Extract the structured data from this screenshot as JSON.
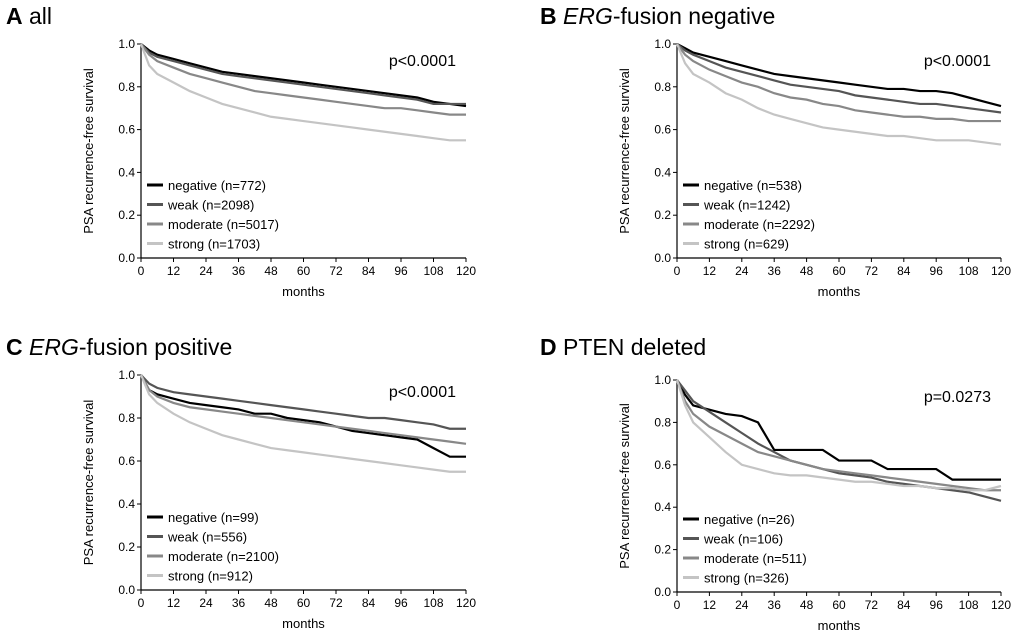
{
  "chart_data": [
    {
      "type": "line",
      "panel": "A",
      "title": "all",
      "annotation": "p<0.0001",
      "x_label": "months",
      "y_label": "PSA recurrence-free survival",
      "x": [
        0,
        3,
        6,
        12,
        18,
        24,
        30,
        36,
        42,
        48,
        54,
        60,
        66,
        72,
        78,
        84,
        90,
        96,
        102,
        108,
        114,
        120
      ],
      "series": [
        {
          "name": "negative (n=772)",
          "color": "#000000",
          "values": [
            1,
            0.97,
            0.95,
            0.93,
            0.91,
            0.89,
            0.87,
            0.86,
            0.85,
            0.84,
            0.83,
            0.82,
            0.81,
            0.8,
            0.79,
            0.78,
            0.77,
            0.76,
            0.75,
            0.73,
            0.72,
            0.71
          ]
        },
        {
          "name": "weak (n=2098)",
          "color": "#555555",
          "values": [
            1,
            0.96,
            0.94,
            0.92,
            0.9,
            0.88,
            0.86,
            0.85,
            0.84,
            0.83,
            0.82,
            0.81,
            0.8,
            0.79,
            0.78,
            0.77,
            0.76,
            0.75,
            0.74,
            0.72,
            0.72,
            0.72
          ]
        },
        {
          "name": "moderate (n=5017)",
          "color": "#888888",
          "values": [
            1,
            0.95,
            0.92,
            0.89,
            0.86,
            0.84,
            0.82,
            0.8,
            0.78,
            0.77,
            0.76,
            0.75,
            0.74,
            0.73,
            0.72,
            0.71,
            0.7,
            0.7,
            0.69,
            0.68,
            0.67,
            0.67
          ]
        },
        {
          "name": "strong (n=1703)",
          "color": "#c4c4c4",
          "values": [
            1,
            0.9,
            0.86,
            0.82,
            0.78,
            0.75,
            0.72,
            0.7,
            0.68,
            0.66,
            0.65,
            0.64,
            0.63,
            0.62,
            0.61,
            0.6,
            0.59,
            0.58,
            0.57,
            0.56,
            0.55,
            0.55
          ]
        }
      ],
      "xlim": [
        0,
        120
      ],
      "xticks": [
        0,
        12,
        24,
        36,
        48,
        60,
        72,
        84,
        96,
        108,
        120
      ],
      "ylim": [
        0,
        1
      ],
      "yticks": [
        {
          "value": 0,
          "label": "0.0"
        },
        0.2,
        0.4,
        0.6,
        0.8,
        {
          "value": 1,
          "label": "1.0"
        }
      ]
    },
    {
      "type": "line",
      "panel": "B",
      "title_italic": "ERG",
      "title": "-fusion negative",
      "annotation": "p<0.0001",
      "x_label": "months",
      "y_label": "PSA recurrence-free survival",
      "x": [
        0,
        3,
        6,
        12,
        18,
        24,
        30,
        36,
        42,
        48,
        54,
        60,
        66,
        72,
        78,
        84,
        90,
        96,
        102,
        108,
        114,
        120
      ],
      "series": [
        {
          "name": "negative (n=538)",
          "color": "#000000",
          "values": [
            1,
            0.98,
            0.96,
            0.94,
            0.92,
            0.9,
            0.88,
            0.86,
            0.85,
            0.84,
            0.83,
            0.82,
            0.81,
            0.8,
            0.79,
            0.79,
            0.78,
            0.78,
            0.77,
            0.75,
            0.73,
            0.71
          ]
        },
        {
          "name": "weak (n=1242)",
          "color": "#555555",
          "values": [
            1,
            0.97,
            0.95,
            0.92,
            0.89,
            0.87,
            0.85,
            0.83,
            0.81,
            0.8,
            0.79,
            0.78,
            0.76,
            0.75,
            0.74,
            0.73,
            0.72,
            0.72,
            0.71,
            0.7,
            0.69,
            0.68
          ]
        },
        {
          "name": "moderate (n=2292)",
          "color": "#888888",
          "values": [
            1,
            0.95,
            0.92,
            0.88,
            0.85,
            0.82,
            0.8,
            0.77,
            0.75,
            0.74,
            0.72,
            0.71,
            0.69,
            0.68,
            0.67,
            0.66,
            0.66,
            0.65,
            0.65,
            0.64,
            0.64,
            0.64
          ]
        },
        {
          "name": "strong (n=629)",
          "color": "#c4c4c4",
          "values": [
            1,
            0.91,
            0.86,
            0.82,
            0.77,
            0.74,
            0.7,
            0.67,
            0.65,
            0.63,
            0.61,
            0.6,
            0.59,
            0.58,
            0.57,
            0.57,
            0.56,
            0.55,
            0.55,
            0.55,
            0.54,
            0.53
          ]
        }
      ],
      "xlim": [
        0,
        120
      ],
      "xticks": [
        0,
        12,
        24,
        36,
        48,
        60,
        72,
        84,
        96,
        108,
        120
      ],
      "ylim": [
        0,
        1
      ],
      "yticks": [
        {
          "value": 0,
          "label": "0.0"
        },
        0.2,
        0.4,
        0.6,
        0.8,
        {
          "value": 1,
          "label": "1.0"
        }
      ]
    },
    {
      "type": "line",
      "panel": "C",
      "title_italic": "ERG",
      "title": "-fusion positive",
      "annotation": "p<0.0001",
      "x_label": "months",
      "y_label": "PSA recurrence-free survival",
      "x": [
        0,
        3,
        6,
        12,
        18,
        24,
        30,
        36,
        42,
        48,
        54,
        60,
        66,
        72,
        78,
        84,
        90,
        96,
        102,
        108,
        114,
        120
      ],
      "series": [
        {
          "name": "negative (n=99)",
          "color": "#000000",
          "values": [
            1,
            0.93,
            0.91,
            0.89,
            0.87,
            0.86,
            0.85,
            0.84,
            0.82,
            0.82,
            0.8,
            0.79,
            0.78,
            0.76,
            0.74,
            0.73,
            0.72,
            0.71,
            0.7,
            0.66,
            0.62,
            0.62
          ]
        },
        {
          "name": "weak (n=556)",
          "color": "#555555",
          "values": [
            1,
            0.96,
            0.94,
            0.92,
            0.91,
            0.9,
            0.89,
            0.88,
            0.87,
            0.86,
            0.85,
            0.84,
            0.83,
            0.82,
            0.81,
            0.8,
            0.8,
            0.79,
            0.78,
            0.77,
            0.75,
            0.75
          ]
        },
        {
          "name": "moderate (n=2100)",
          "color": "#888888",
          "values": [
            1,
            0.93,
            0.9,
            0.87,
            0.85,
            0.84,
            0.83,
            0.82,
            0.81,
            0.8,
            0.79,
            0.78,
            0.77,
            0.76,
            0.75,
            0.74,
            0.73,
            0.72,
            0.71,
            0.7,
            0.69,
            0.68
          ]
        },
        {
          "name": "strong (n=912)",
          "color": "#c4c4c4",
          "values": [
            1,
            0.91,
            0.87,
            0.82,
            0.78,
            0.75,
            0.72,
            0.7,
            0.68,
            0.66,
            0.65,
            0.64,
            0.63,
            0.62,
            0.61,
            0.6,
            0.59,
            0.58,
            0.57,
            0.56,
            0.55,
            0.55
          ]
        }
      ],
      "xlim": [
        0,
        120
      ],
      "xticks": [
        0,
        12,
        24,
        36,
        48,
        60,
        72,
        84,
        96,
        108,
        120
      ],
      "ylim": [
        0,
        1
      ],
      "yticks": [
        {
          "value": 0,
          "label": "0.0"
        },
        0.2,
        0.4,
        0.6,
        0.8,
        {
          "value": 1,
          "label": "1.0"
        }
      ]
    },
    {
      "type": "line",
      "panel": "D",
      "title": "PTEN deleted",
      "annotation": "p=0.0273",
      "x_label": "months",
      "y_label": "PSA recurrence-free survival",
      "x": [
        0,
        3,
        6,
        12,
        18,
        24,
        30,
        36,
        42,
        48,
        54,
        60,
        66,
        72,
        78,
        84,
        90,
        96,
        102,
        108,
        114,
        120
      ],
      "series": [
        {
          "name": "negative (n=26)",
          "color": "#000000",
          "values": [
            1,
            0.93,
            0.88,
            0.86,
            0.84,
            0.83,
            0.8,
            0.67,
            0.67,
            0.67,
            0.67,
            0.62,
            0.62,
            0.62,
            0.58,
            0.58,
            0.58,
            0.58,
            0.53,
            0.53,
            0.53,
            0.53
          ]
        },
        {
          "name": "weak (n=106)",
          "color": "#555555",
          "values": [
            1,
            0.95,
            0.9,
            0.85,
            0.8,
            0.75,
            0.7,
            0.66,
            0.62,
            0.6,
            0.58,
            0.56,
            0.55,
            0.54,
            0.52,
            0.51,
            0.5,
            0.49,
            0.48,
            0.47,
            0.45,
            0.43
          ]
        },
        {
          "name": "moderate (n=511)",
          "color": "#888888",
          "values": [
            1,
            0.9,
            0.84,
            0.78,
            0.74,
            0.7,
            0.66,
            0.64,
            0.62,
            0.6,
            0.58,
            0.57,
            0.56,
            0.55,
            0.54,
            0.53,
            0.52,
            0.51,
            0.5,
            0.49,
            0.48,
            0.48
          ]
        },
        {
          "name": "strong (n=326)",
          "color": "#c4c4c4",
          "values": [
            1,
            0.88,
            0.8,
            0.73,
            0.66,
            0.6,
            0.58,
            0.56,
            0.55,
            0.55,
            0.54,
            0.53,
            0.52,
            0.52,
            0.51,
            0.5,
            0.5,
            0.49,
            0.49,
            0.48,
            0.48,
            0.5
          ]
        }
      ],
      "xlim": [
        0,
        120
      ],
      "xticks": [
        0,
        12,
        24,
        36,
        48,
        60,
        72,
        84,
        96,
        108,
        120
      ],
      "ylim": [
        0,
        1
      ],
      "yticks": [
        {
          "value": 0,
          "label": "0.0"
        },
        0.2,
        0.4,
        0.6,
        0.8,
        {
          "value": 1,
          "label": "1.0"
        }
      ]
    }
  ]
}
